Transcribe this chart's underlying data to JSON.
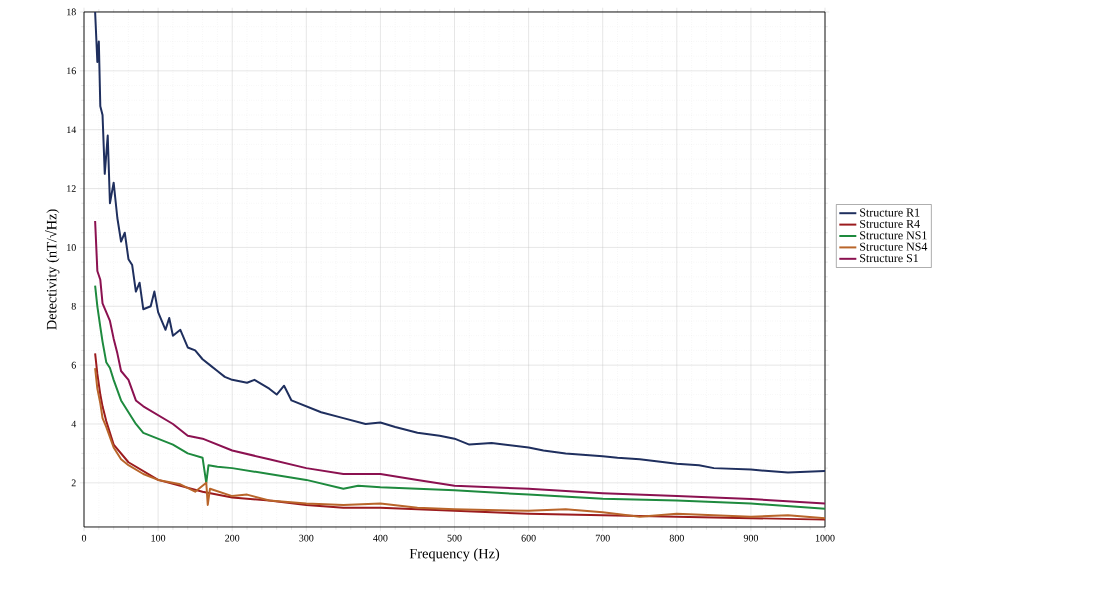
{
  "chart_data": {
    "type": "line",
    "xlabel": "Frequency (Hz)",
    "ylabel": "Detectivity (nT/√Hz)",
    "xlim": [
      0,
      1000
    ],
    "ylim": [
      0.5,
      18
    ],
    "xticks": [
      0,
      100,
      200,
      300,
      400,
      500,
      600,
      700,
      800,
      900,
      1000
    ],
    "yticks": [
      2,
      4,
      6,
      8,
      10,
      12,
      14,
      16,
      18
    ],
    "grid": true,
    "legend": "right",
    "series": [
      {
        "name": "Structure R1",
        "color": "#1f2f5e",
        "x": [
          15,
          18,
          20,
          22,
          25,
          28,
          32,
          35,
          40,
          45,
          50,
          55,
          60,
          65,
          70,
          75,
          80,
          90,
          95,
          100,
          110,
          115,
          120,
          130,
          140,
          150,
          160,
          170,
          180,
          190,
          200,
          220,
          230,
          250,
          260,
          270,
          280,
          300,
          320,
          350,
          380,
          400,
          420,
          450,
          480,
          500,
          520,
          550,
          600,
          620,
          650,
          700,
          720,
          750,
          800,
          830,
          850,
          900,
          950,
          1000
        ],
        "values": [
          18,
          16.3,
          17,
          14.8,
          14.5,
          12.5,
          13.8,
          11.5,
          12.2,
          11,
          10.2,
          10.5,
          9.6,
          9.4,
          8.5,
          8.8,
          7.9,
          8,
          8.5,
          7.8,
          7.2,
          7.6,
          7,
          7.2,
          6.6,
          6.5,
          6.2,
          6,
          5.8,
          5.6,
          5.5,
          5.4,
          5.5,
          5.2,
          5,
          5.3,
          4.8,
          4.6,
          4.4,
          4.2,
          4,
          4.05,
          3.9,
          3.7,
          3.6,
          3.5,
          3.3,
          3.35,
          3.2,
          3.1,
          3,
          2.9,
          2.85,
          2.8,
          2.65,
          2.6,
          2.5,
          2.45,
          2.35,
          2.4
        ]
      },
      {
        "name": "Structure R4",
        "color": "#9b1b1e",
        "x": [
          15,
          18,
          22,
          25,
          30,
          40,
          50,
          60,
          80,
          100,
          130,
          160,
          200,
          250,
          300,
          350,
          400,
          500,
          600,
          700,
          800,
          900,
          1000
        ],
        "values": [
          6.4,
          5.7,
          5,
          4.6,
          4.1,
          3.3,
          3,
          2.7,
          2.4,
          2.1,
          1.9,
          1.7,
          1.5,
          1.4,
          1.25,
          1.15,
          1.15,
          1.05,
          0.95,
          0.9,
          0.85,
          0.8,
          0.75
        ]
      },
      {
        "name": "Structure NS1",
        "color": "#1e8a3e",
        "x": [
          15,
          18,
          22,
          25,
          30,
          35,
          40,
          50,
          60,
          70,
          80,
          100,
          120,
          140,
          160,
          165,
          168,
          180,
          200,
          250,
          300,
          350,
          370,
          400,
          450,
          500,
          600,
          700,
          800,
          900,
          1000
        ],
        "values": [
          8.7,
          8,
          7.3,
          6.8,
          6.1,
          5.9,
          5.5,
          4.8,
          4.4,
          4,
          3.7,
          3.5,
          3.3,
          3,
          2.85,
          2,
          2.6,
          2.55,
          2.5,
          2.3,
          2.1,
          1.8,
          1.9,
          1.85,
          1.8,
          1.75,
          1.6,
          1.46,
          1.4,
          1.3,
          1.12
        ]
      },
      {
        "name": "Structure NS4",
        "color": "#b9652a",
        "x": [
          15,
          18,
          22,
          25,
          30,
          40,
          50,
          60,
          80,
          100,
          130,
          150,
          165,
          167,
          170,
          200,
          220,
          250,
          300,
          350,
          400,
          450,
          500,
          600,
          650,
          700,
          750,
          800,
          850,
          900,
          950,
          1000
        ],
        "values": [
          5.9,
          5.2,
          4.7,
          4.2,
          3.9,
          3.2,
          2.8,
          2.6,
          2.3,
          2.1,
          1.95,
          1.7,
          2,
          1.25,
          1.8,
          1.55,
          1.6,
          1.4,
          1.3,
          1.25,
          1.3,
          1.15,
          1.1,
          1.05,
          1.1,
          1,
          0.85,
          0.95,
          0.9,
          0.85,
          0.9,
          0.8
        ]
      },
      {
        "name": "Structure S1",
        "color": "#8b1150",
        "x": [
          15,
          18,
          22,
          25,
          30,
          35,
          40,
          45,
          50,
          60,
          70,
          80,
          100,
          120,
          140,
          160,
          180,
          200,
          250,
          300,
          350,
          400,
          450,
          500,
          550,
          600,
          700,
          800,
          900,
          1000
        ],
        "values": [
          10.9,
          9.2,
          8.9,
          8.1,
          7.8,
          7.5,
          6.9,
          6.4,
          5.8,
          5.5,
          4.8,
          4.6,
          4.3,
          4,
          3.6,
          3.5,
          3.3,
          3.1,
          2.8,
          2.5,
          2.3,
          2.3,
          2.1,
          1.9,
          1.85,
          1.8,
          1.65,
          1.55,
          1.45,
          1.3
        ]
      }
    ]
  }
}
